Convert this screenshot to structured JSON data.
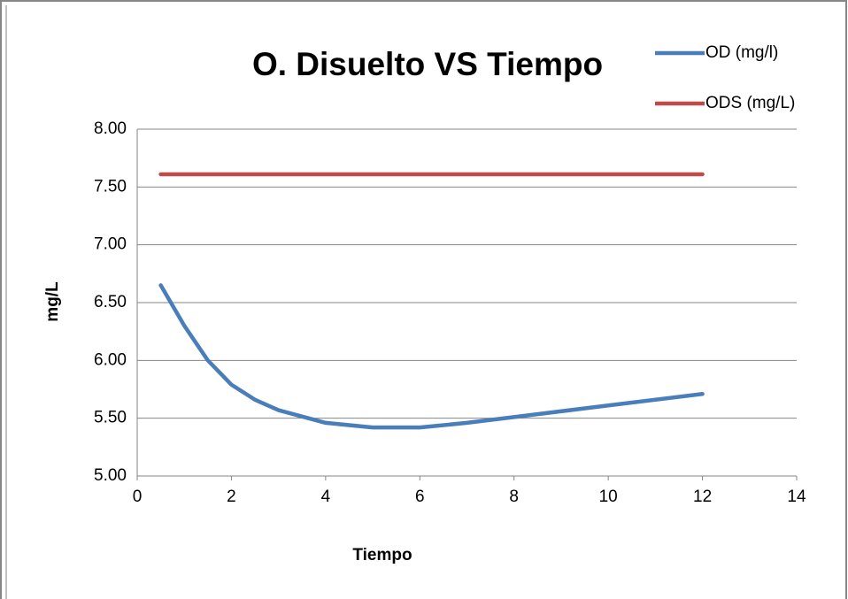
{
  "chart_data": {
    "type": "line",
    "title": "O. Disuelto VS Tiempo",
    "xlabel": "Tiempo",
    "ylabel": "mg/L",
    "x": [
      0.5,
      1,
      1.5,
      2,
      2.5,
      3,
      4,
      5,
      6,
      7,
      8,
      10,
      12
    ],
    "series": [
      {
        "name": "OD (mg/l)",
        "color": "#4a7ebb",
        "values": [
          6.65,
          6.3,
          6.0,
          5.79,
          5.66,
          5.57,
          5.46,
          5.42,
          5.42,
          5.46,
          5.51,
          5.61,
          5.71
        ]
      },
      {
        "name": "ODS (mg/L)",
        "color": "#be4b48",
        "values": [
          7.61,
          7.61,
          7.61,
          7.61,
          7.61,
          7.61,
          7.61,
          7.61,
          7.61,
          7.61,
          7.61,
          7.61,
          7.61
        ]
      }
    ],
    "xlim": [
      0,
      14
    ],
    "xticks": [
      0,
      2,
      4,
      6,
      8,
      10,
      12,
      14
    ],
    "ylim": [
      5,
      8
    ],
    "yticks": [
      {
        "value": 5,
        "label": "5.00"
      },
      {
        "value": 5.5,
        "label": "5.50"
      },
      {
        "value": 6,
        "label": "6.00"
      },
      {
        "value": 6.5,
        "label": "6.50"
      },
      {
        "value": 7,
        "label": "7.00"
      },
      {
        "value": 7.5,
        "label": "7.50"
      },
      {
        "value": 8,
        "label": "8.00"
      }
    ],
    "grid": true,
    "legend": "top-right"
  }
}
